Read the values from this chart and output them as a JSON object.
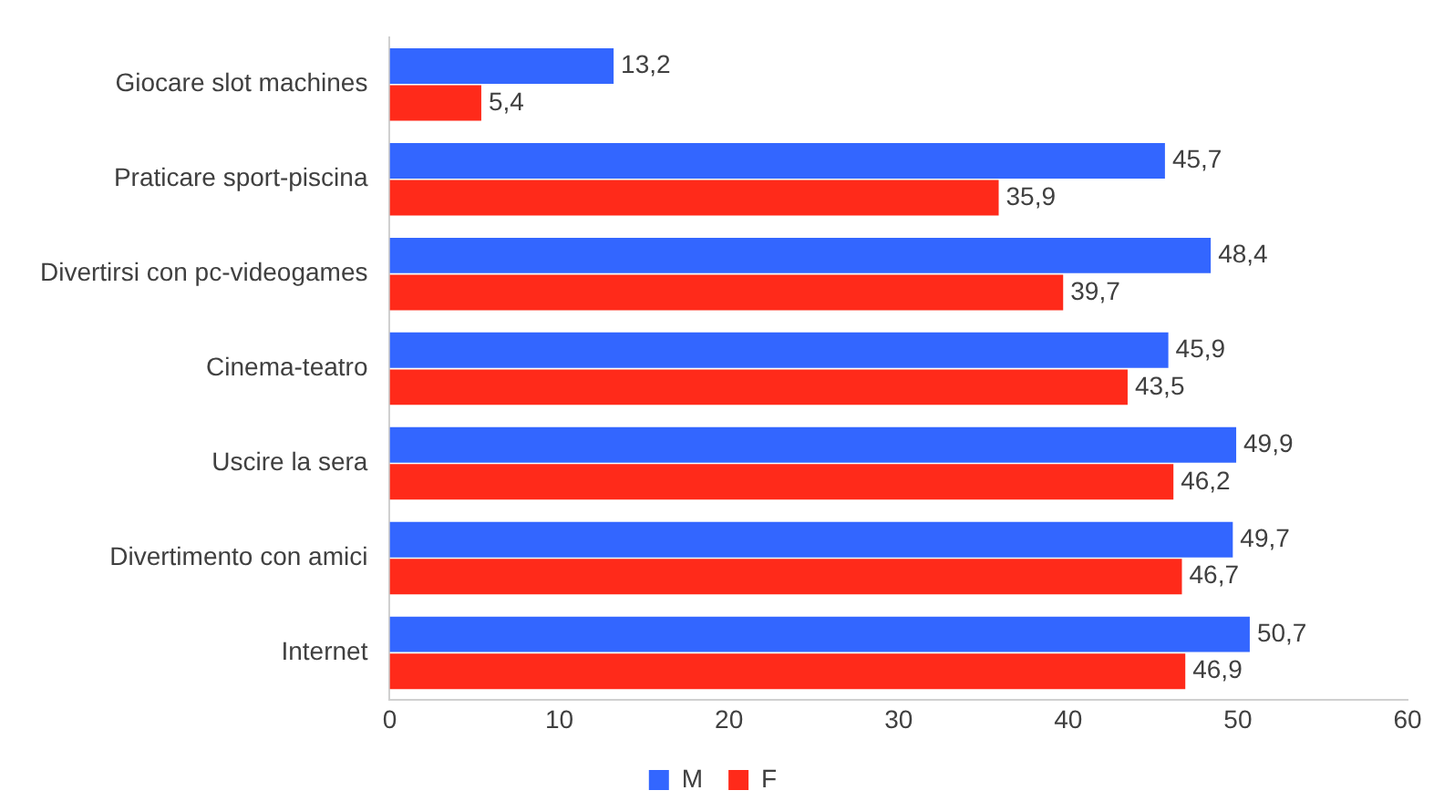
{
  "chart_data": {
    "type": "bar",
    "orientation": "horizontal",
    "categories": [
      "Giocare slot machines",
      "Praticare sport-piscina",
      "Divertirsi con pc-videogames",
      "Cinema-teatro",
      "Uscire la sera",
      "Divertimento con amici",
      "Internet"
    ],
    "series": [
      {
        "name": "M",
        "color": "#3366ff",
        "values": [
          13.2,
          45.7,
          48.4,
          45.9,
          49.9,
          49.7,
          50.7
        ],
        "value_labels": [
          "13,2",
          "45,7",
          "48,4",
          "45,9",
          "49,9",
          "49,7",
          "50,7"
        ]
      },
      {
        "name": "F",
        "color": "#ff2a1a",
        "values": [
          5.4,
          35.9,
          39.7,
          43.5,
          46.2,
          46.7,
          46.9
        ],
        "value_labels": [
          "5,4",
          "35,9",
          "39,7",
          "43,5",
          "46,2",
          "46,7",
          "46,9"
        ]
      }
    ],
    "xlim": [
      0,
      60
    ],
    "xticks": [
      0,
      10,
      20,
      30,
      40,
      50,
      60
    ],
    "grid": false,
    "legend": "bottom"
  }
}
